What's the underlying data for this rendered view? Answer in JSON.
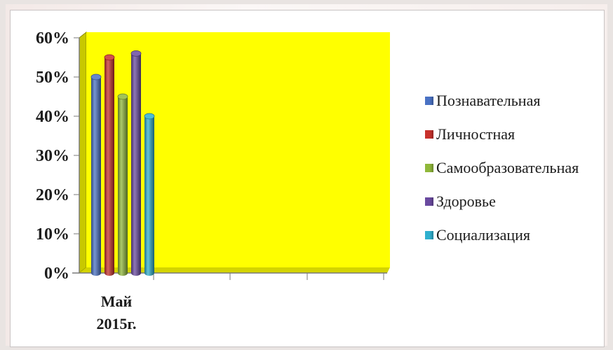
{
  "chart_data": {
    "type": "bar",
    "style": "3d-cylinder",
    "categories": [
      "Май 2015г."
    ],
    "category_lines": [
      "Май",
      "2015г."
    ],
    "series": [
      {
        "name": "Познавательная",
        "values": [
          50
        ],
        "color": "#4a72c4"
      },
      {
        "name": "Личностная",
        "values": [
          55
        ],
        "color": "#c8312c"
      },
      {
        "name": "Самообразовательная",
        "values": [
          45
        ],
        "color": "#90b83a"
      },
      {
        "name": "Здоровье",
        "values": [
          56
        ],
        "color": "#6a4aa0"
      },
      {
        "name": "Социализация",
        "values": [
          40
        ],
        "color": "#2fb0cf"
      }
    ],
    "y_ticks": [
      "0%",
      "10%",
      "20%",
      "30%",
      "40%",
      "50%",
      "60%"
    ],
    "ylim": [
      0,
      60
    ],
    "legend_position": "right",
    "plot_background": "#ffff00",
    "grid": false
  }
}
